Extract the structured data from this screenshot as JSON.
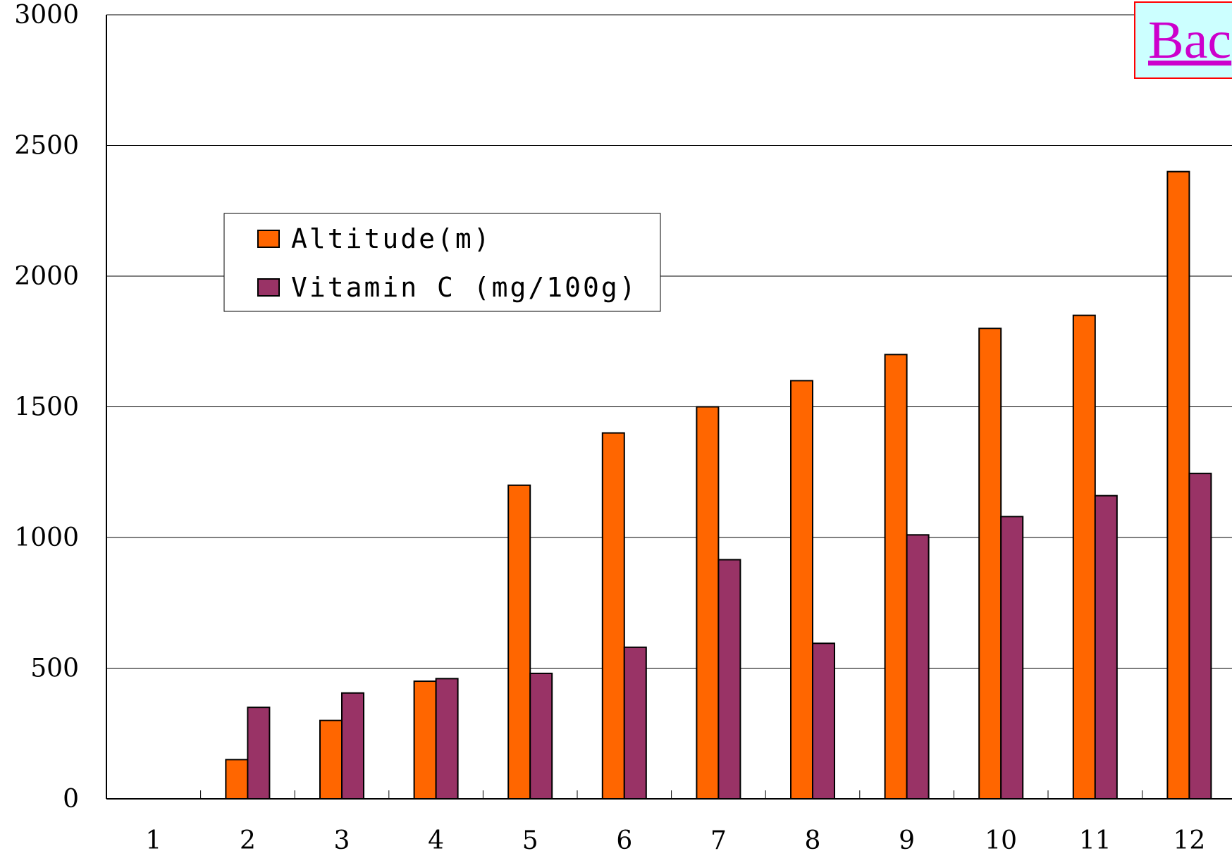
{
  "back_button": {
    "label": "Bac"
  },
  "chart_data": {
    "type": "bar",
    "title": "",
    "xlabel": "",
    "ylabel": "",
    "ylim": [
      0,
      3000
    ],
    "y_ticks": [
      "0",
      "500",
      "1000",
      "1500",
      "2000",
      "2500",
      "3000"
    ],
    "categories": [
      "1",
      "2",
      "3",
      "4",
      "5",
      "6",
      "7",
      "8",
      "9",
      "10",
      "11",
      "12"
    ],
    "series": [
      {
        "name": "Altitude(m)",
        "color": "#ff6600",
        "values": [
          0,
          150,
          300,
          450,
          1200,
          1400,
          1500,
          1600,
          1700,
          1800,
          1850,
          2400
        ]
      },
      {
        "name": "Vitamin C (mg/100g)",
        "color": "#993366",
        "values": [
          0,
          350,
          405,
          460,
          480,
          580,
          915,
          595,
          1010,
          1080,
          1160,
          1245
        ]
      }
    ],
    "grid": true,
    "legend_position": "top-left"
  }
}
